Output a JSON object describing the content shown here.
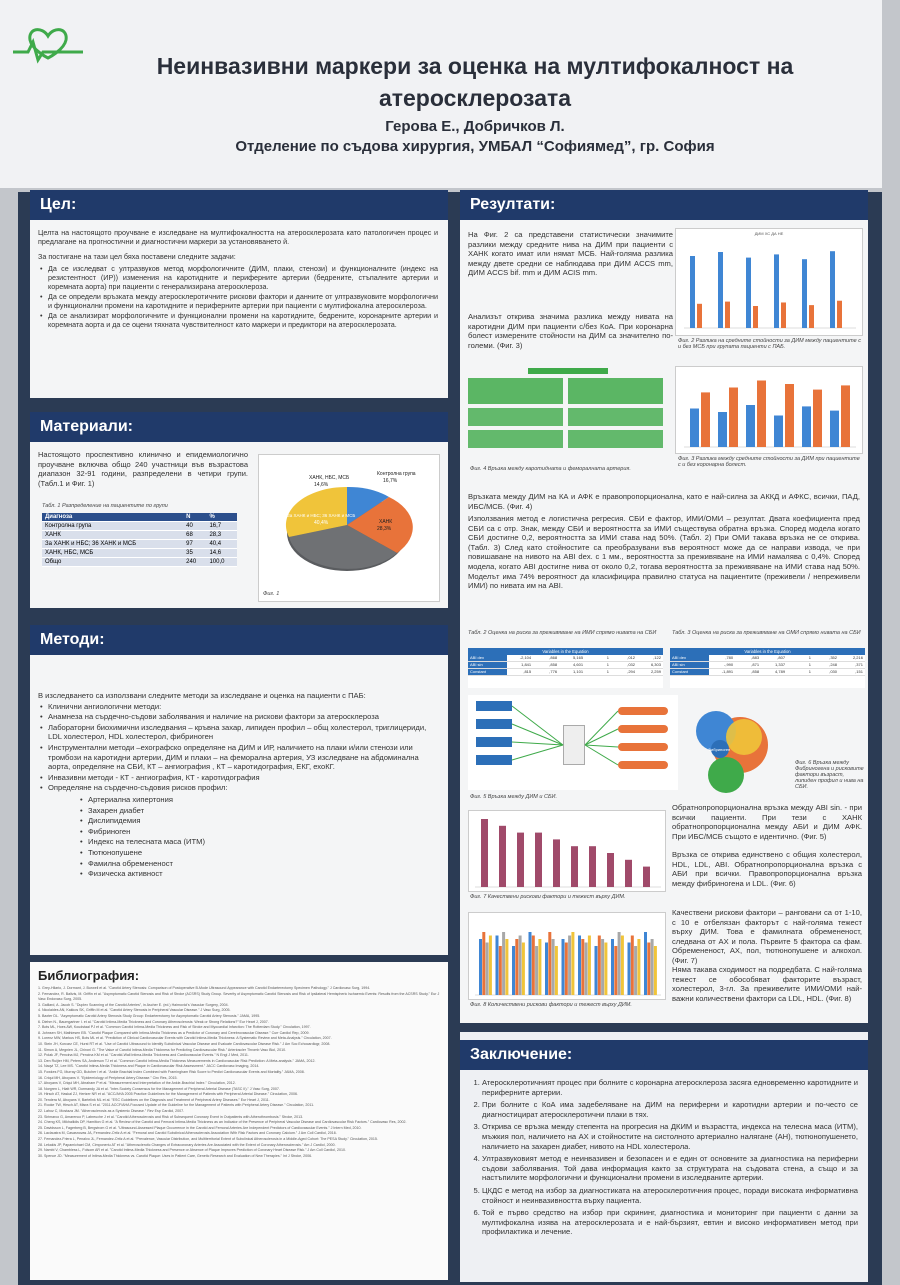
{
  "header": {
    "title": "Неинвазивни маркери за оценка на мултифокалност на атеросклерозата",
    "authors": "Герова Е., Добричков Л.",
    "department": "Отделение по съдова хирургия, УМБАЛ “Софиямед”, гр. София"
  },
  "colors": {
    "accent": "#203a6a",
    "orange": "#e8733a",
    "blue": "#3f86d4",
    "green": "#3faa4a"
  },
  "goal": {
    "heading": "Цел:",
    "intro": "Целта на настоящото проучване е изследване на мултифокалността на атеросклерозата като патологичен процес и предлагане на прогностични и диагностични маркери за установяването й.",
    "tasks_intro": "За постигане на тази цел бяха поставени следните задачи:",
    "tasks": [
      "Да се изследват с ултразвуков метод морфологичните (ДИМ, плаки, стенози) и функционалните (индекс на резистентност (ИР)) изменения на каротидните и периферните артерии (бедрените, стъпалните артерии и коремната аорта) при пациенти с генерализирана атеросклероза.",
      "Да се определи връзката между атеросклеротичните рискови фактори и данните от ултразвуковите морфологични и функционални промени на каротидните и периферните артерии при пациенти с мултифокална атеросклероза.",
      "Да се анализират морфологичните и функционални промени на каротидните, бедрените, коронарните артерии и коремната аорта и да се оцени тяхната чувствителност като маркери и предиктори на атеросклерозата."
    ]
  },
  "materials": {
    "heading": "Материали:",
    "text": "Настоящото проспективно клинично и епидемиологично проучване включва общо 240 участници във възрастова диапазон 32-91 години, разпределени в четири групи.(Табл.1 и Фиг. 1)",
    "table_caption": "Табл. 1 Разпределение на пациентите по групи",
    "table_header": [
      "Диагноза",
      "N",
      "%"
    ],
    "table_rows": [
      [
        "Контролна група",
        "40",
        "16,7"
      ],
      [
        "ХАНК",
        "68",
        "28,3"
      ],
      [
        "За ХАНК и НБС; 36 ХАНК и МСБ",
        "97",
        "40,4"
      ],
      [
        "ХАНК, НБС, МСБ",
        "35",
        "14,6"
      ],
      [
        "Общо",
        "240",
        "100,0"
      ]
    ],
    "fig_caption": "Фиг. 1"
  },
  "pie_labels": [
    {
      "name": "ХАНК, НБС, МСБ",
      "pct": "14,6%"
    },
    {
      "name": "Контролна група",
      "pct": "16,7%"
    },
    {
      "name": "ХАНК",
      "pct": "28,3%"
    },
    {
      "name": "За ХАНК и НБС; 36 ХАНК и МСБ",
      "pct": "40,4%"
    }
  ],
  "methods": {
    "heading": "Методи:",
    "intro": "В изследването са използвани следните методи за изследване и оценка на пациенти с ПАБ:",
    "items": [
      "Клинични ангиологични методи:",
      "Анамнеза на сърдечно-съдови заболявания и наличие на рискови фактори за атеросклероза",
      "Лабораторни биохимични изследвания – кръвна захар, липиден профил – общ холестерол, триглицериди, LDL холестерол, HDL холестерол, фибриноген",
      "Инструментални методи –ехографско определяне на ДИМ и ИР, наличието на плаки и/или стенози или тромбози на каротидни артерии, ДИМ и плаки – на феморална артерия, УЗ изследване на абдоминална аорта, определяне на СБИ, КТ – ангиография , КТ – каротидография, ЕКГ, ехоКГ.",
      "Инвазивни методи - КТ - ангиография, КТ - каротидография",
      "Определяне на сърдечно-съдовия рисков профил:"
    ],
    "risk_factors": [
      "Артериална хипертония",
      "Захарен диабет",
      "Дислипидемия",
      "Фибриноген",
      "Индекс на телесната маса (ИТМ)",
      "Тютюнопушене",
      "Фамилна обремененост",
      "Физическа активност"
    ]
  },
  "bibliography": {
    "heading": "Библиография:",
    "items": [
      "Grey-Hilario, J. Dormant, J. Burwell et al. \"Carotid Artery Stenosis: Comparison of Postoperative B-Mode Ultrasound Appearance with Carotid Endarterectomy Specimen Pathology.\" J Cardiovasc Surg, 1994.",
      "Fernandez, R. Baltzis, M. Griffin et al. \"Asymptomatic Carotid Stenosis and Risk of Stroke (ACSRS) Study Group. Severity of Asymptomatic Carotid Stenosis and Risk of Ipsilateral Hemispheric Ischaemic Events: Results from the ACSRS Study.\" Eur J Vasc Endovasc Surg, 2005.",
      "Gaillard, A. Jacob S. \"Duplex Scanning of the Carotid Arteries\", in Ascher E. (ed.) Haimovici's Vascular Surgery, 2004.",
      "Nicolaides AN, Kakkos SK, Griffin M et al. \"Carotid Artery Stenosis in Peripheral Vascular Disease.\" J Vasc Surg, 2005.",
      "Baxter DL. \"Asymptomatic Carotid Artery Stenosis Study Group: Endarterectomy for Asymptomatic Carotid Artery Stenosis.\" JAMA, 1995.",
      "Diehm N., Baumgartner I. et al. \"Carotid Intima-Media Thickness and Coronary Atherosclerosis: Weak or Strong Relations?\" Eur Heart J, 2007.",
      "Bots ML, Hoes AW, Koudstaal PJ et al. \"Common Carotid Intima-Media Thickness and Risk of Stroke and Myocardial Infarction: The Rotterdam Study.\" Circulation, 1997.",
      "Johnsen SH, Mathiesen EB. \"Carotid Plaque Compared with Intima-Media Thickness as a Predictor of Coronary and Cerebrovascular Disease.\" Curr Cardiol Rep, 2009.",
      "Lorenz MW, Markus HS, Bots ML et al. \"Prediction of Clinical Cardiovascular Events with Carotid Intima-Media Thickness: A Systematic Review and Meta-Analysis.\" Circulation, 2007.",
      "Stein JH, Korcarz CE, Hurst RT et al. \"Use of Carotid Ultrasound to Identify Subclinical Vascular Disease and Evaluate Cardiovascular Disease Risk.\" J Am Soc Echocardiogr, 2008.",
      "Simon A, Megnien JL, Chironi G. \"The Value of Carotid Intima-Media Thickness for Predicting Cardiovascular Risk.\" Arterioscler Thromb Vasc Biol, 2010.",
      "Polak JF, Pencina MJ, Pencina KM et al. \"Carotid-Wall Intima-Media Thickness and Cardiovascular Events.\" N Engl J Med, 2011.",
      "Den Ruijter HM, Peters SA, Anderson TJ et al. \"Common Carotid Intima-Media Thickness Measurements in Cardiovascular Risk Prediction: A Meta-analysis.\" JAMA, 2012.",
      "Naqvi TZ, Lee MS. \"Carotid Intima-Media Thickness and Plaque in Cardiovascular Risk Assessment.\" JACC Cardiovasc Imaging, 2014.",
      "Fowkes FG, Murray GD, Butcher I et al. \"Ankle Brachial Index Combined with Framingham Risk Score to Predict Cardiovascular Events and Mortality.\" JAMA, 2008.",
      "Criqui MH, Aboyans V. \"Epidemiology of Peripheral Artery Disease.\" Circ Res, 2015.",
      "Aboyans V, Criqui MH, Abraham P et al. \"Measurement and Interpretation of the Ankle-Brachial Index.\" Circulation, 2012.",
      "Norgren L, Hiatt WR, Dormandy JA et al. \"Inter-Society Consensus for the Management of Peripheral Arterial Disease (TASC II).\" J Vasc Surg, 2007.",
      "Hirsch AT, Haskal ZJ, Hertzer NR et al. \"ACC/AHA 2005 Practice Guidelines for the Management of Patients with Peripheral Arterial Disease.\" Circulation, 2006.",
      "Tendera M, Aboyans V, Bartelink ML et al. \"ESC Guidelines on the Diagnosis and Treatment of Peripheral Artery Diseases.\" Eur Heart J, 2011.",
      "Rooke TW, Hirsch AT, Misra S et al. \"2011 ACCF/AHA Focused Update of the Guideline for the Management of Patients with Peripheral Artery Disease.\" Circulation, 2011.",
      "Lahoz C, Mostaza JM. \"Atherosclerosis as a Systemic Disease.\" Rev Esp Cardiol, 2007.",
      "Sirimarco G, Amarenco P, Labreuche J et al. \"Carotid Atherosclerosis and Risk of Subsequent Coronary Event in Outpatients with Atherothrombosis.\" Stroke, 2013.",
      "Cheng KS, Mikhailidis DP, Hamilton G et al. \"A Review of the Carotid and Femoral Intima-Media Thickness as an Indicator of the Presence of Peripheral Vascular Disease and Cardiovascular Risk Factors.\" Cardiovasc Res, 2002.",
      "Davidsson L, Fagerberg B, Bergstrom G et al. \"Ultrasound-Assessed Plaque Occurrence in the Carotid and Femoral Arteries Are Independent Predictors of Cardiovascular Events.\" J Intern Med, 2010.",
      "Laclaustra M, Casasnovas JA, Fernandez-Ortiz A et al. \"Femoral and Carotid Subclinical Atherosclerosis Association With Risk Factors and Coronary Calcium.\" J Am Coll Cardiol, 2016.",
      "Fernandez-Friera L, Penalvo JL, Fernandez-Ortiz A et al. \"Prevalence, Vascular Distribution, and Multiterritorial Extent of Subclinical Atherosclerosis in a Middle-Aged Cohort: The PESA Study.\" Circulation, 2015.",
      "Lekakis JP, Papamichael CM, Cimponeriu AT et al. \"Atherosclerotic Changes of Extracoronary Arteries Are Associated with the Extent of Coronary Atherosclerosis.\" Am J Cardiol, 2000.",
      "Nambi V, Chambless L, Folsom AR et al. \"Carotid Intima-Media Thickness and Presence or Absence of Plaque Improves Prediction of Coronary Heart Disease Risk.\" J Am Coll Cardiol, 2010.",
      "Spence JD. \"Measurement of Intima-Media Thickness vs. Carotid Plaque: Uses in Patient Care, Genetic Research and Evaluation of New Therapies.\" Int J Stroke, 2006."
    ]
  },
  "results": {
    "heading": "Резултати:",
    "p1": "На Фиг. 2 са представени статистически значимите разлики между средните нива на ДИМ при пациенти с ХАНК когато имат или нямат МСБ. Най-голяма разлика между двете средни се наблюдава при ДИМ ACCS mm, ДИМ ACCS bif. mm и ДИМ ACIS mm.",
    "p2": "Анализът открива значима разлика между нивата на каротидни ДИМ при пациенти с/без КоА. При коронарна болест измерените стойности на ДИМ са значително по-големи. (Фиг. 3)",
    "fig2_caption": "Фиг. 2 Разлика на средните стойности за ДИМ между пациентите с и без МСБ при групата пациенти с ПАБ.",
    "fig2_title": "ДИМ ХС ДА НЕ",
    "fig3_caption": "Фиг. 3 Разлика между средните стойности за ДИМ при пациентите с и без коронарна болест.",
    "fig4_caption": "Фиг. 4 Връзка между каротидната и феморалната артерия.",
    "p3": "Връзката между ДИМ на КА и АФК е правопропорционална, като е най-силна за АККД и АФКС, всички, ПАД, ИБС/МСБ. (Фиг. 4)",
    "p4": "Използвания метод е логистична регресия. СБИ е фактор, ИМИ/ОМИ – резултат. Двата коефициента пред СБИ са с отр. Знак, между СБИ и вероятността за ИМИ съществува обратна връзка. Според модела когато СБИ достигне 0,2, вероятността за ИМИ става над 50%. (Табл. 2) При ОМИ такава връзка не се открива. (Табл. 3) След като стойностите са преобразувани във вероятност може да се направи извода, че при повишаване на нивото на ABI dex. с 1 мм., вероятността за преживяване на ИМИ намалява с 0,4%. Според модела, когато ABI достигне нива от около 0,2, тогава вероятността за преживяване на ИМИ става над 50%. Моделът има 74% вероятност да класифицира правилно статуса на пациентите (преживели / непреживели ИМИ) по нивата им на ABI.",
    "tab2_caption": "Табл. 2 Оценка на риска за преживяване на ИМИ спрямо нивата на СБИ",
    "tab3_caption": "Табл. 3 Оценка на риска за преживяване на ОМИ спрямо нивата на СБИ",
    "tab_bar_label": "Variables in the Equation",
    "tab_cols": [
      "B",
      "S.E.",
      "Wald",
      "df",
      "Sig.",
      "Exp(B)"
    ],
    "tab2_rows": [
      [
        "ABI dex",
        "-2,104",
        ",868",
        "5,165",
        "1",
        ",012",
        ",122"
      ],
      [
        "ABI sin",
        "1,841",
        ",858",
        "4,601",
        "1",
        ",032",
        "6,303"
      ],
      [
        "Constant",
        ",815",
        ",776",
        "1,101",
        "1",
        ",294",
        "2,259"
      ]
    ],
    "tab3_rows": [
      [
        "ABI dex",
        ",780",
        ",883",
        ",807",
        "1",
        ",352",
        "2,216"
      ],
      [
        "ABI sin",
        "-,990",
        ",871",
        "1,337",
        "1",
        ",248",
        ",371"
      ],
      [
        "Constant",
        "-1,891",
        ",858",
        "4,789",
        "1",
        ",030",
        ",151"
      ]
    ],
    "fig5_caption": "Фиг. 5 Връзка между ДИМ и СБИ.",
    "fig6_caption": "Фиг. 6 Връзка между Фибриногена и рисковите фактори възраст, липиден профил и нива на СБИ.",
    "fig6_center": "Фибриноген",
    "fig7_caption": "Фиг. 7 Качествени рискови фактори и тежест върху ДИМ.",
    "fig8_caption": "Фиг. 8 Количествени рискови фактори и тежест върху ДИМ.",
    "p5": "Обратнопропорционална връзка между ABI sin. - при всички пациенти. При тези с ХАНК обратнопропорционална между АБИ и ДИМ АФК. При ИБС/МСБ същото е идентично. (Фиг. 5)",
    "p6": "Връзка се открива единствено с общия холестерол, HDL, LDL, ABI. Обратнопропорционална връзка с АБИ при всички. Правопропорционална връзка между фибриногена и LDL. (Фиг. 6)",
    "p7": "Качествени рискови фактори – ранговани са от 1-10, с 10 е отбелязан факторът с най-голяма тежест върху ДИМ. Това е фамилната обремененост, следвана от АХ и пола. Първите 5 фактора са фам. Обремененост, АХ, пол, тютюнопушене и алкохол. (Фиг. 7)",
    "p8": "Няма такава сходимост на подредбата. С най-голяма тежест се обособяват факторите възраст, холестерол, 3-гл. За преживелите ИМИ/ОМИ най-важни количествени фактори са LDL, HDL. (Фиг. 8)"
  },
  "fig2_bars": [
    {
      "yes": 0.55,
      "no": 0.9
    },
    {
      "yes": 0.6,
      "no": 0.95
    },
    {
      "yes": 0.5,
      "no": 0.88
    },
    {
      "yes": 0.58,
      "no": 0.92
    },
    {
      "yes": 0.52,
      "no": 0.86
    },
    {
      "yes": 0.62,
      "no": 0.96
    }
  ],
  "fig3_bars": [
    {
      "a": 0.55,
      "b": 0.78
    },
    {
      "a": 0.5,
      "b": 0.85
    },
    {
      "a": 0.6,
      "b": 0.95
    },
    {
      "a": 0.45,
      "b": 0.9
    },
    {
      "a": 0.58,
      "b": 0.82
    },
    {
      "a": 0.52,
      "b": 0.88
    }
  ],
  "fig7_values": [
    10,
    9,
    8,
    8,
    7,
    6,
    6,
    5,
    4,
    3
  ],
  "fig8_groups": [
    [
      0.8,
      0.9,
      0.75,
      0.85
    ],
    [
      0.85,
      0.7,
      0.9,
      0.8
    ],
    [
      0.7,
      0.8,
      0.85,
      0.75
    ],
    [
      0.9,
      0.85,
      0.7,
      0.8
    ],
    [
      0.75,
      0.9,
      0.8,
      0.7
    ],
    [
      0.8,
      0.75,
      0.85,
      0.9
    ],
    [
      0.85,
      0.8,
      0.75,
      0.85
    ],
    [
      0.7,
      0.85,
      0.8,
      0.75
    ],
    [
      0.8,
      0.7,
      0.9,
      0.85
    ],
    [
      0.75,
      0.85,
      0.7,
      0.8
    ],
    [
      0.9,
      0.75,
      0.8,
      0.7
    ]
  ],
  "conclusion": {
    "heading": "Заключение:",
    "items": [
      "Атеросклеротичният процес при болните с коронарна атеросклероза засяга едновременно каротидните и периферните артерии.",
      "При болните с КоА има задебеляване на ДИМ на периферни и каротидни артерии и по-често се диагностицират атеросклеротични плаки в тях.",
      "Открива се връзка между степента на прогресия на ДКИМ и възрастта, индекса на телесна маса (ИТМ), мъжкия пол, наличието на АХ и стойностите на систолното артериално налягане (АН), тютюнопушенето, наличието на захарен диабет, нивото на HDL холестерола.",
      "Ултразвуковият метод е неинвазивен и безопасен и е един от основните за диагностика на периферни съдови заболявания. Той дава информация както за структурата на съдовата стена, а също и за настъпилите морфологични и функционални промени в изследваните артерии.",
      "ЦКДС е метод на избор за диагностиката на атеросклеротичния процес, поради високата информативна стойност и неинвазивността върху пациента.",
      "Той е първо средство на избор при скрининг, диагностика и мониторинг при пациенти с данни за мултифокална изява на атеросклерозата и е най-бързият, евтин и високо информативен метод при профилактика и лечение."
    ]
  }
}
